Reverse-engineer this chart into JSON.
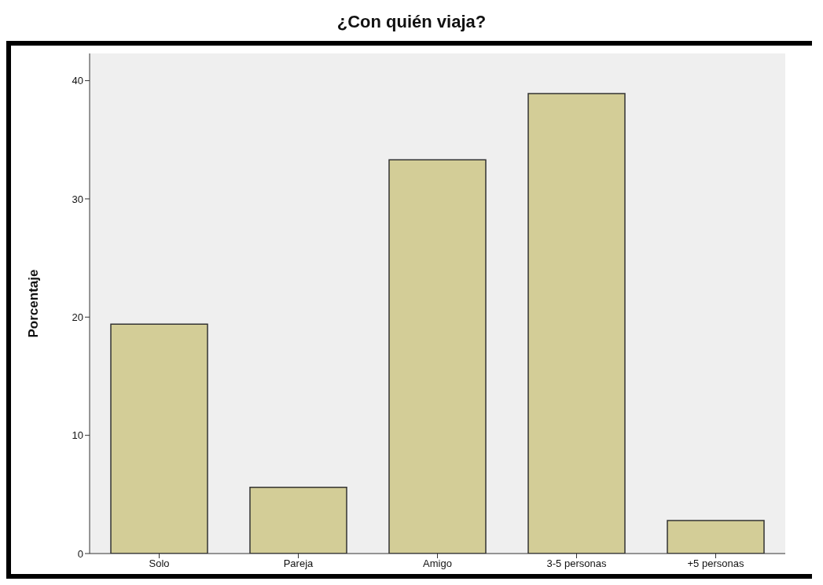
{
  "chart_data": {
    "type": "bar",
    "title": "¿Con quién viaja?",
    "ylabel": "Porcentaje",
    "categories": [
      "Solo",
      "Pareja",
      "Amigo",
      "3-5 personas",
      "+5 personas"
    ],
    "values": [
      19.4,
      5.6,
      33.3,
      38.9,
      2.8
    ],
    "color": "#d3cd97",
    "ylim": [
      0,
      42.3
    ],
    "yticks": [
      0,
      10,
      20,
      30,
      40
    ],
    "grid": false,
    "legend": false
  }
}
